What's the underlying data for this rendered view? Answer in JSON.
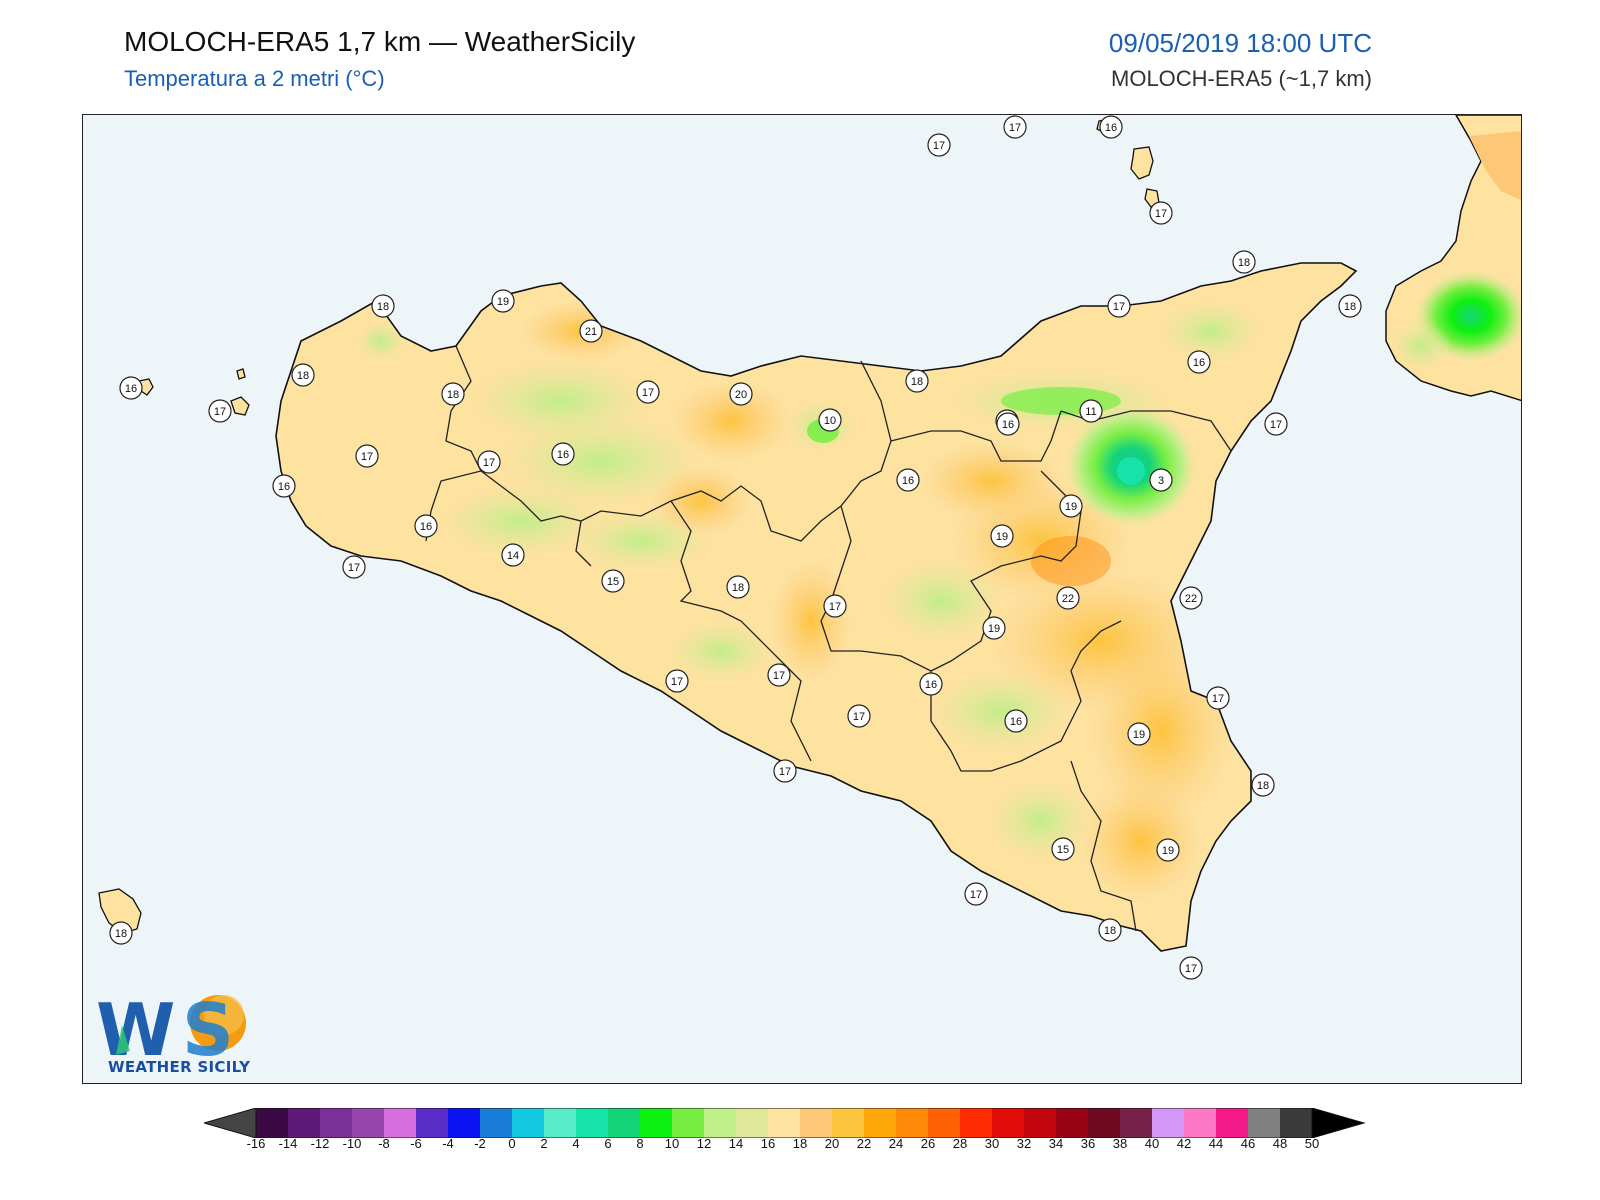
{
  "header": {
    "title": "MOLOCH-ERA5 1,7 km — WeatherSicily",
    "subtitle": "Temperatura a 2 metri (°C)",
    "datetime": "09/05/2019 18:00 UTC",
    "model": "MOLOCH-ERA5 (~1,7 km)"
  },
  "logo": {
    "text": "WEATHER SICILY",
    "letters": "WS"
  },
  "colors": {
    "sea": "#edf5f9",
    "land_base": "#fde2a0",
    "accent_blue": "#1a5fb4"
  },
  "stations": [
    {
      "value": "17"
    },
    {
      "value": "17"
    },
    {
      "value": "16"
    },
    {
      "value": "17"
    },
    {
      "value": "18"
    },
    {
      "value": "18"
    },
    {
      "value": "17"
    },
    {
      "value": "19"
    },
    {
      "value": "18"
    },
    {
      "value": "21"
    },
    {
      "value": "16"
    },
    {
      "value": "18"
    },
    {
      "value": "17"
    },
    {
      "value": "20"
    },
    {
      "value": "18"
    },
    {
      "value": "16"
    },
    {
      "value": "17"
    },
    {
      "value": "18"
    },
    {
      "value": "10"
    },
    {
      "value": "11"
    },
    {
      "value": "11"
    },
    {
      "value": "17"
    },
    {
      "value": "16"
    },
    {
      "value": "3"
    },
    {
      "value": "17"
    },
    {
      "value": "16"
    },
    {
      "value": "17"
    },
    {
      "value": "16"
    },
    {
      "value": "19"
    },
    {
      "value": "19"
    },
    {
      "value": "16"
    },
    {
      "value": "16"
    },
    {
      "value": "14"
    },
    {
      "value": "15"
    },
    {
      "value": "18"
    },
    {
      "value": "17"
    },
    {
      "value": "17"
    },
    {
      "value": "22"
    },
    {
      "value": "22"
    },
    {
      "value": "19"
    },
    {
      "value": "17"
    },
    {
      "value": "17"
    },
    {
      "value": "16"
    },
    {
      "value": "17"
    },
    {
      "value": "16"
    },
    {
      "value": "17"
    },
    {
      "value": "19"
    },
    {
      "value": "17"
    },
    {
      "value": "18"
    },
    {
      "value": "15"
    },
    {
      "value": "19"
    },
    {
      "value": "17"
    },
    {
      "value": "18"
    },
    {
      "value": "17"
    },
    {
      "value": "18"
    }
  ],
  "colorbar": {
    "ticks": [
      "-16",
      "-14",
      "-12",
      "-10",
      "-8",
      "-6",
      "-4",
      "-2",
      "0",
      "2",
      "4",
      "6",
      "8",
      "10",
      "12",
      "14",
      "16",
      "18",
      "20",
      "22",
      "24",
      "26",
      "28",
      "30",
      "32",
      "34",
      "36",
      "38",
      "40",
      "42",
      "44",
      "46",
      "48",
      "50"
    ],
    "colors": [
      "#3b0a45",
      "#5e1a78",
      "#7b2f99",
      "#9646ab",
      "#d76fe0",
      "#5a2cc8",
      "#0a14f0",
      "#1a7ed8",
      "#13c8e0",
      "#58ecc8",
      "#17e3a8",
      "#14d478",
      "#0ef010",
      "#78ee44",
      "#c0ee88",
      "#dfe89a",
      "#fee2a0",
      "#fcc878",
      "#fdc43e",
      "#fea80c",
      "#fe8a08",
      "#fe6205",
      "#fe2a02",
      "#e00c08",
      "#c2060e",
      "#980414",
      "#6e0a20",
      "#772048",
      "#d398f6",
      "#fe78c8",
      "#f41a8a",
      "#808080",
      "#3a3a3a"
    ]
  }
}
